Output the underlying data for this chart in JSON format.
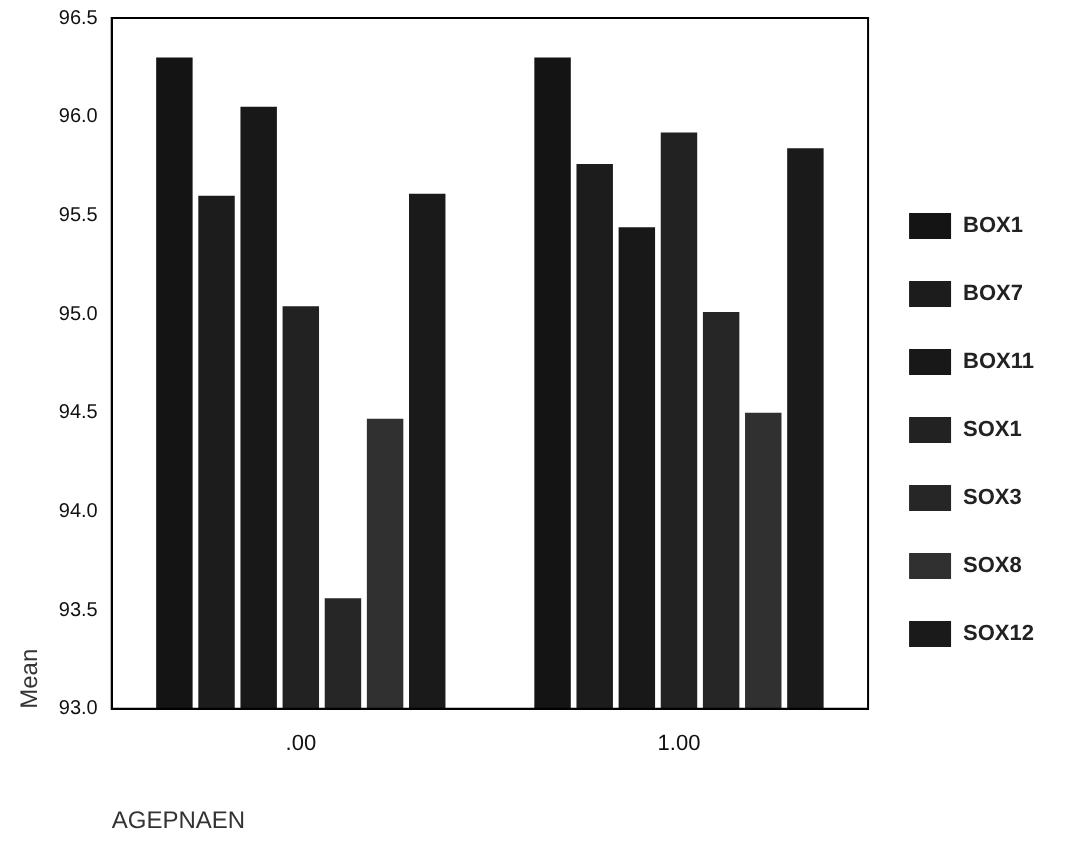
{
  "chart_data": {
    "type": "bar",
    "xlabel": "AGEPNAEN",
    "ylabel": "Mean",
    "categories": [
      ".00",
      "1.00"
    ],
    "series": [
      {
        "name": "BOX1",
        "color": "#141414",
        "values": [
          96.31,
          96.31
        ]
      },
      {
        "name": "BOX7",
        "color": "#1c1c1c",
        "values": [
          95.61,
          95.77
        ]
      },
      {
        "name": "BOX11",
        "color": "#181818",
        "values": [
          96.06,
          95.45
        ]
      },
      {
        "name": "SOX1",
        "color": "#222222",
        "values": [
          95.05,
          95.93
        ]
      },
      {
        "name": "SOX3",
        "color": "#262626",
        "values": [
          93.57,
          95.02
        ]
      },
      {
        "name": "SOX8",
        "color": "#303030",
        "values": [
          94.48,
          94.51
        ]
      },
      {
        "name": "SOX12",
        "color": "#1a1a1a",
        "values": [
          95.62,
          95.85
        ]
      }
    ],
    "ylim": [
      93,
      96.5
    ],
    "yticks": [
      {
        "value": 93,
        "label": "93.0"
      },
      {
        "value": 93.5,
        "label": "93.5"
      },
      {
        "value": 94,
        "label": "94.0"
      },
      {
        "value": 94.5,
        "label": "94.5"
      },
      {
        "value": 95,
        "label": "95.0"
      },
      {
        "value": 95.5,
        "label": "95.5"
      },
      {
        "value": 96,
        "label": "96.0"
      },
      {
        "value": 96.5,
        "label": "96.5"
      }
    ],
    "grid": false,
    "legend": "right"
  }
}
